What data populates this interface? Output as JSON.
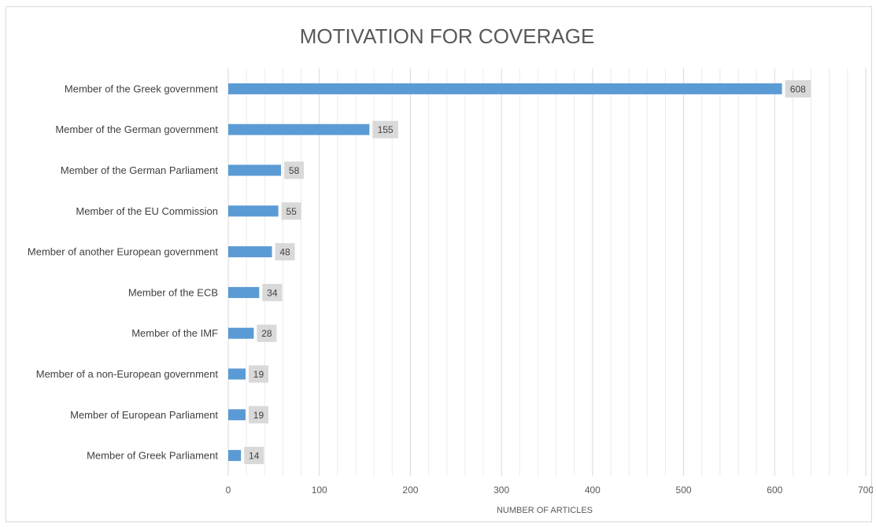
{
  "chart_data": {
    "type": "bar",
    "orientation": "horizontal",
    "title": "MOTIVATION FOR COVERAGE",
    "xlabel": "NUMBER OF ARTICLES",
    "ylabel": "",
    "categories": [
      "Member of the Greek government",
      "Member of the German government",
      "Member of the German Parliament",
      "Member of the EU Commission",
      "Member of another European government",
      "Member of the ECB",
      "Member of the IMF",
      "Member of a non-European government",
      "Member of European Parliament",
      "Member of Greek Parliament"
    ],
    "values": [
      608,
      155,
      58,
      55,
      48,
      34,
      28,
      19,
      19,
      14
    ],
    "xlim": [
      0,
      700
    ],
    "xticks": [
      0,
      100,
      200,
      300,
      400,
      500,
      600,
      700
    ],
    "grid": "vertical minor gridlines",
    "legend": "none",
    "data_labels": true,
    "colors": {
      "bar": "#5b9bd5",
      "label_box": "#d9d9d9",
      "grid": "#d9d9d9",
      "text": "#595959"
    }
  }
}
